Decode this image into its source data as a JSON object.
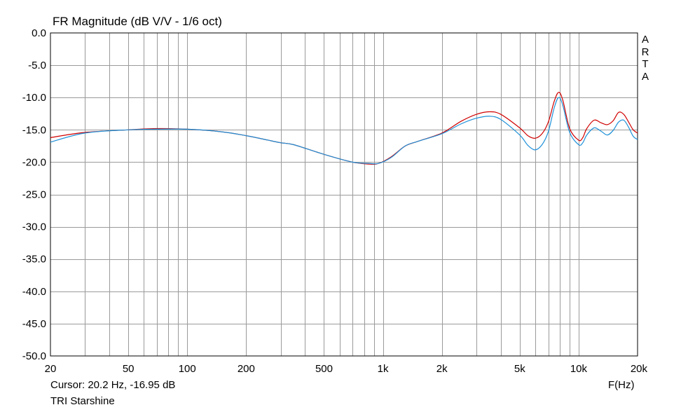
{
  "chart_data": {
    "type": "line",
    "title": "FR Magnitude (dB V/V - 1/6 oct)",
    "xlabel": "F(Hz)",
    "ylabel": "",
    "x_scale": "log",
    "xlim": [
      20,
      20000
    ],
    "ylim": [
      -50,
      0
    ],
    "grid": true,
    "x_tick_values": [
      20,
      50,
      100,
      200,
      500,
      1000,
      2000,
      5000,
      10000,
      20000
    ],
    "x_tick_labels": [
      "20",
      "50",
      "100",
      "200",
      "500",
      "1k",
      "2k",
      "5k",
      "10k",
      "20k"
    ],
    "y_tick_values": [
      0,
      -5,
      -10,
      -15,
      -20,
      -25,
      -30,
      -35,
      -40,
      -45,
      -50
    ],
    "y_tick_labels": [
      "0.0",
      "-5.0",
      "-10.0",
      "-15.0",
      "-20.0",
      "-25.0",
      "-30.0",
      "-35.0",
      "-40.0",
      "-45.0",
      "-50.0"
    ],
    "series": [
      {
        "color": "#d00000",
        "x": [
          20,
          30,
          50,
          70,
          100,
          150,
          200,
          250,
          300,
          350,
          500,
          700,
          850,
          950,
          1100,
          1300,
          1500,
          2000,
          2500,
          3000,
          3500,
          4000,
          5000,
          5500,
          6000,
          6500,
          7000,
          7500,
          7900,
          8300,
          9000,
          10000,
          10500,
          11000,
          12000,
          13000,
          14000,
          15000,
          16000,
          17000,
          18000,
          19000,
          20000
        ],
        "y": [
          -16.2,
          -15.4,
          -15.0,
          -14.8,
          -14.9,
          -15.3,
          -15.9,
          -16.5,
          -17.0,
          -17.3,
          -18.8,
          -20.0,
          -20.3,
          -20.2,
          -19.2,
          -17.5,
          -16.8,
          -15.5,
          -13.7,
          -12.6,
          -12.2,
          -12.6,
          -14.7,
          -15.9,
          -16.3,
          -15.6,
          -13.8,
          -10.6,
          -9.2,
          -10.4,
          -14.8,
          -16.6,
          -16.2,
          -14.8,
          -13.5,
          -13.9,
          -14.2,
          -13.6,
          -12.3,
          -12.6,
          -13.8,
          -15.0,
          -15.5
        ]
      },
      {
        "color": "#1e90d8",
        "x": [
          20,
          30,
          50,
          70,
          100,
          150,
          200,
          250,
          300,
          350,
          500,
          700,
          850,
          950,
          1100,
          1300,
          1500,
          2000,
          2500,
          3000,
          3500,
          4000,
          5000,
          5500,
          6000,
          6500,
          7000,
          7500,
          7900,
          8300,
          9000,
          10000,
          10500,
          11000,
          12000,
          13000,
          14000,
          15000,
          16000,
          17000,
          18000,
          19000,
          20000
        ],
        "y": [
          -16.9,
          -15.5,
          -15.0,
          -14.9,
          -14.9,
          -15.3,
          -15.9,
          -16.5,
          -17.0,
          -17.3,
          -18.8,
          -20.0,
          -20.2,
          -20.2,
          -19.3,
          -17.5,
          -16.8,
          -15.6,
          -14.1,
          -13.2,
          -12.9,
          -13.4,
          -15.8,
          -17.4,
          -18.1,
          -17.3,
          -15.3,
          -11.6,
          -10.0,
          -11.2,
          -15.4,
          -17.3,
          -17.0,
          -15.8,
          -14.7,
          -15.2,
          -15.8,
          -15.1,
          -13.8,
          -13.5,
          -14.6,
          -16.0,
          -16.5
        ]
      }
    ]
  },
  "footer": {
    "cursor": "Cursor: 20.2 Hz, -16.95 dB",
    "name": "TRI Starshine"
  },
  "brand": [
    "A",
    "R",
    "T",
    "A"
  ]
}
